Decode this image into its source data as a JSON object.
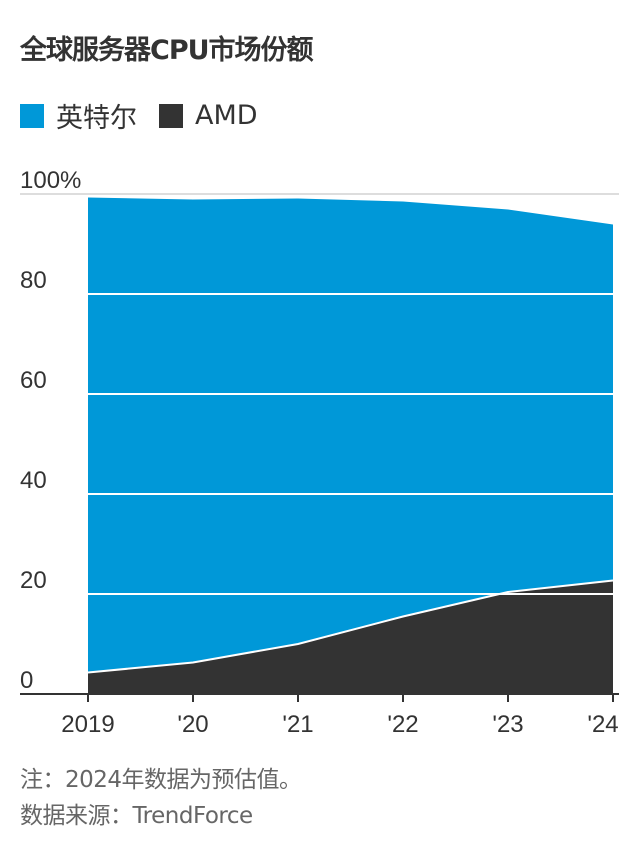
{
  "chart_data": {
    "type": "area",
    "stacked": true,
    "title": "全球服务器CPU市场份额",
    "categories": [
      "2019",
      "'20",
      "'21",
      "'22",
      "'23",
      "'24"
    ],
    "series": [
      {
        "name": "AMD",
        "color": "#333333",
        "values": [
          4.3,
          6.3,
          10.0,
          15.5,
          20.4,
          22.7
        ]
      },
      {
        "name": "英特尔",
        "color": "#0098d8",
        "values": [
          95.0,
          92.6,
          89.1,
          83.0,
          76.5,
          71.2
        ]
      }
    ],
    "ylim": [
      0,
      100
    ],
    "yticks": [
      0,
      20,
      40,
      60,
      80,
      100
    ],
    "ytick_labels": [
      "0",
      "20",
      "40",
      "60",
      "80",
      "100%"
    ],
    "grid": true,
    "legend": "top-left"
  },
  "legend": {
    "intel": "英特尔",
    "amd": "AMD"
  },
  "notes": {
    "note": "注：2024年数据为预估值。",
    "source": "数据来源：TrendForce"
  }
}
